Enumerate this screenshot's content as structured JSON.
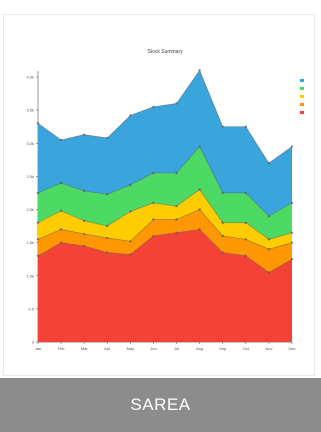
{
  "chart_data": {
    "type": "area",
    "stacked": true,
    "title": "Stock Summary",
    "categories": [
      "Jan",
      "Feb",
      "Mar",
      "Apr",
      "May",
      "Jun",
      "Jul",
      "Aug",
      "Sep",
      "Oct",
      "Nov",
      "Dec"
    ],
    "ylabel": "",
    "yticks": [
      "0",
      "0.5",
      "1.0k",
      "1.5k",
      "2.0k",
      "2.5k",
      "3.0k",
      "3.5k",
      "4.0k"
    ],
    "ylim": [
      0,
      4000
    ],
    "legend_position": "right",
    "series": [
      {
        "name": "",
        "color": "#f44336",
        "values": [
          1300,
          1500,
          1450,
          1350,
          1320,
          1600,
          1650,
          1700,
          1350,
          1300,
          1050,
          1250
        ]
      },
      {
        "name": "",
        "color": "#ff9800",
        "values": [
          250,
          200,
          180,
          220,
          200,
          250,
          200,
          300,
          250,
          250,
          350,
          250
        ]
      },
      {
        "name": "",
        "color": "#ffcc00",
        "values": [
          250,
          280,
          200,
          180,
          450,
          250,
          200,
          300,
          200,
          250,
          150,
          150
        ]
      },
      {
        "name": "",
        "color": "#4cd964",
        "values": [
          450,
          420,
          450,
          480,
          400,
          450,
          500,
          650,
          450,
          450,
          350,
          450
        ]
      },
      {
        "name": "",
        "color": "#3aa4dc",
        "values": [
          1050,
          650,
          850,
          850,
          1050,
          1000,
          1050,
          1150,
          1000,
          1000,
          800,
          850
        ]
      }
    ]
  },
  "footer": {
    "label": "SAREA"
  }
}
